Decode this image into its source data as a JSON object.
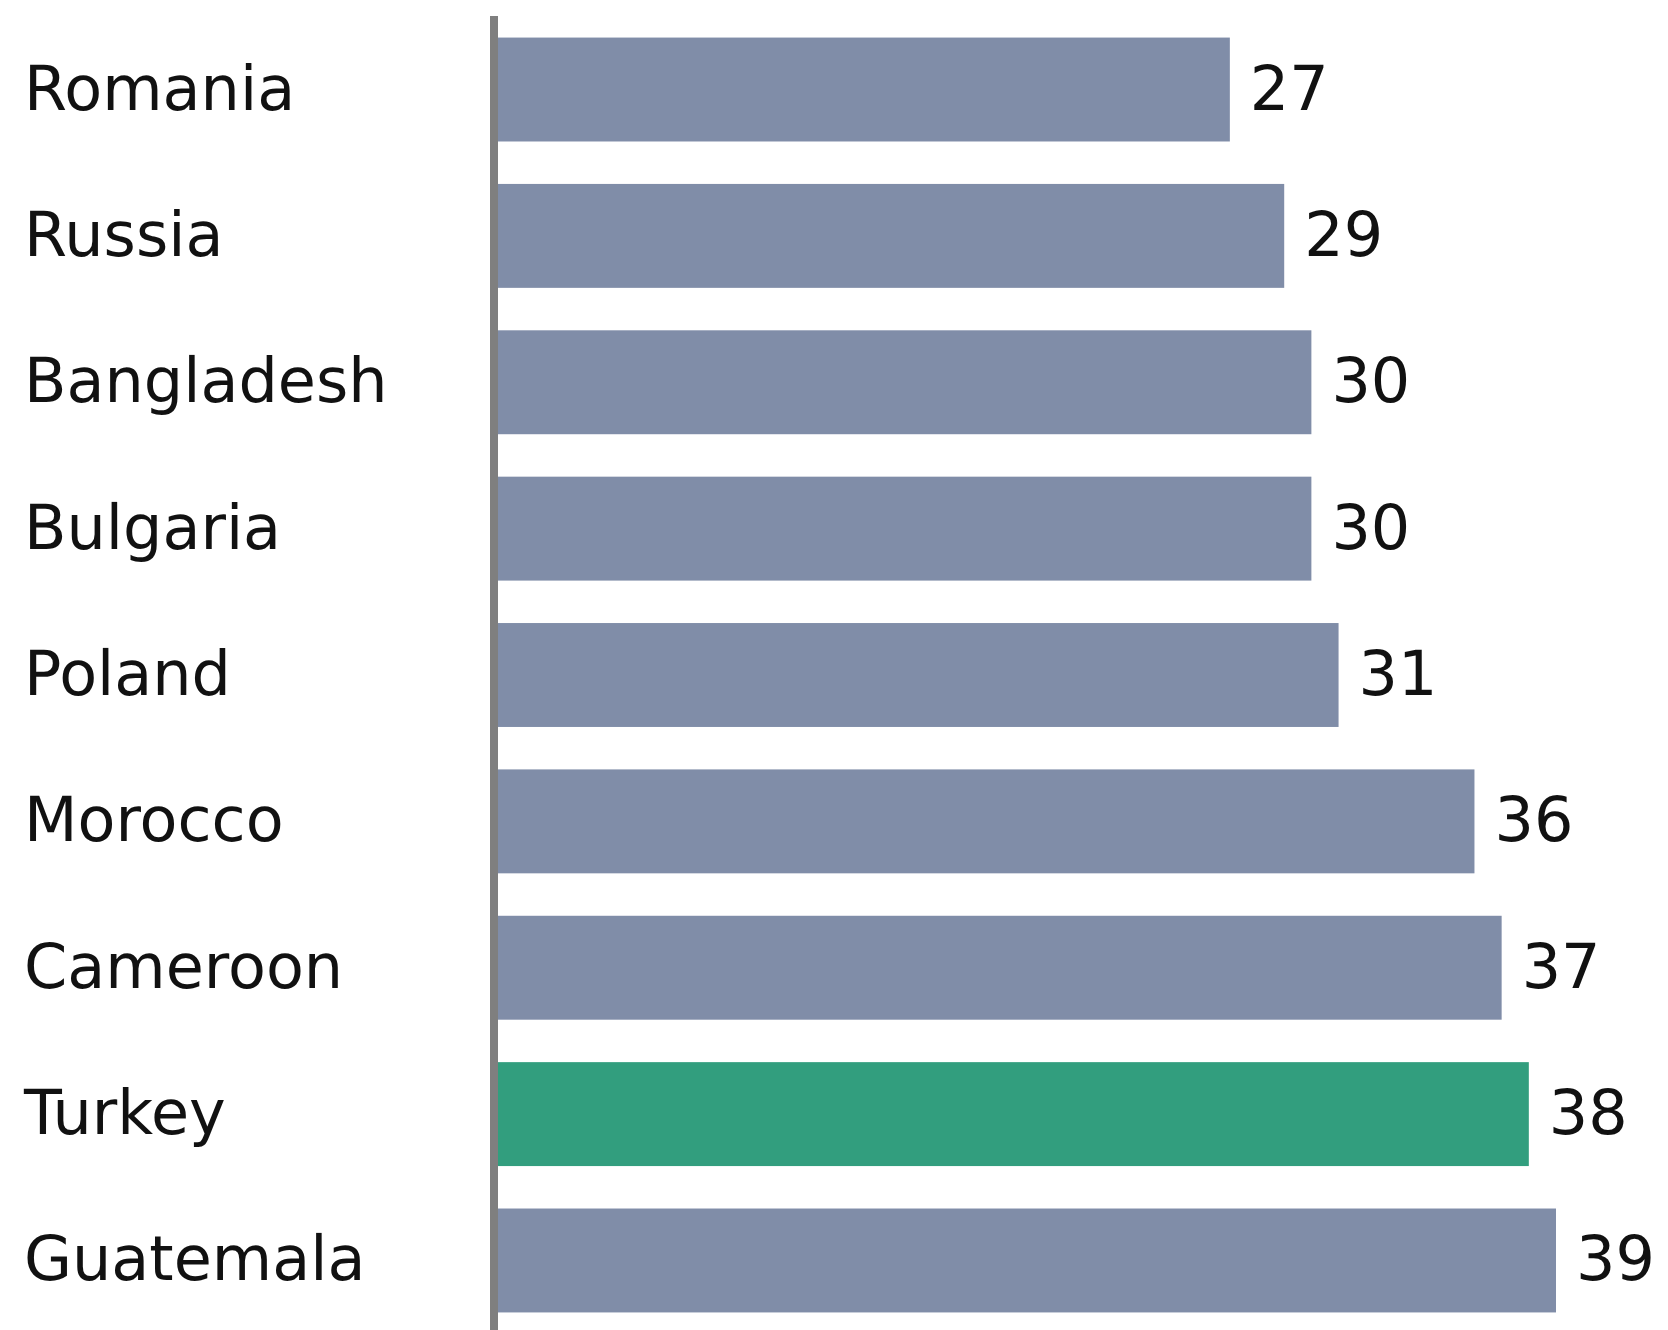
{
  "chart_data": {
    "type": "bar",
    "orientation": "horizontal",
    "categories": [
      "Romania",
      "Russia",
      "Bangladesh",
      "Bulgaria",
      "Poland",
      "Morocco",
      "Cameroon",
      "Turkey",
      "Guatemala"
    ],
    "values": [
      27,
      29,
      30,
      30,
      31,
      36,
      37,
      38,
      39
    ],
    "colors": [
      "#808da8",
      "#808da8",
      "#808da8",
      "#808da8",
      "#808da8",
      "#808da8",
      "#808da8",
      "#329e7e",
      "#808da8"
    ],
    "data_labels": true
  }
}
